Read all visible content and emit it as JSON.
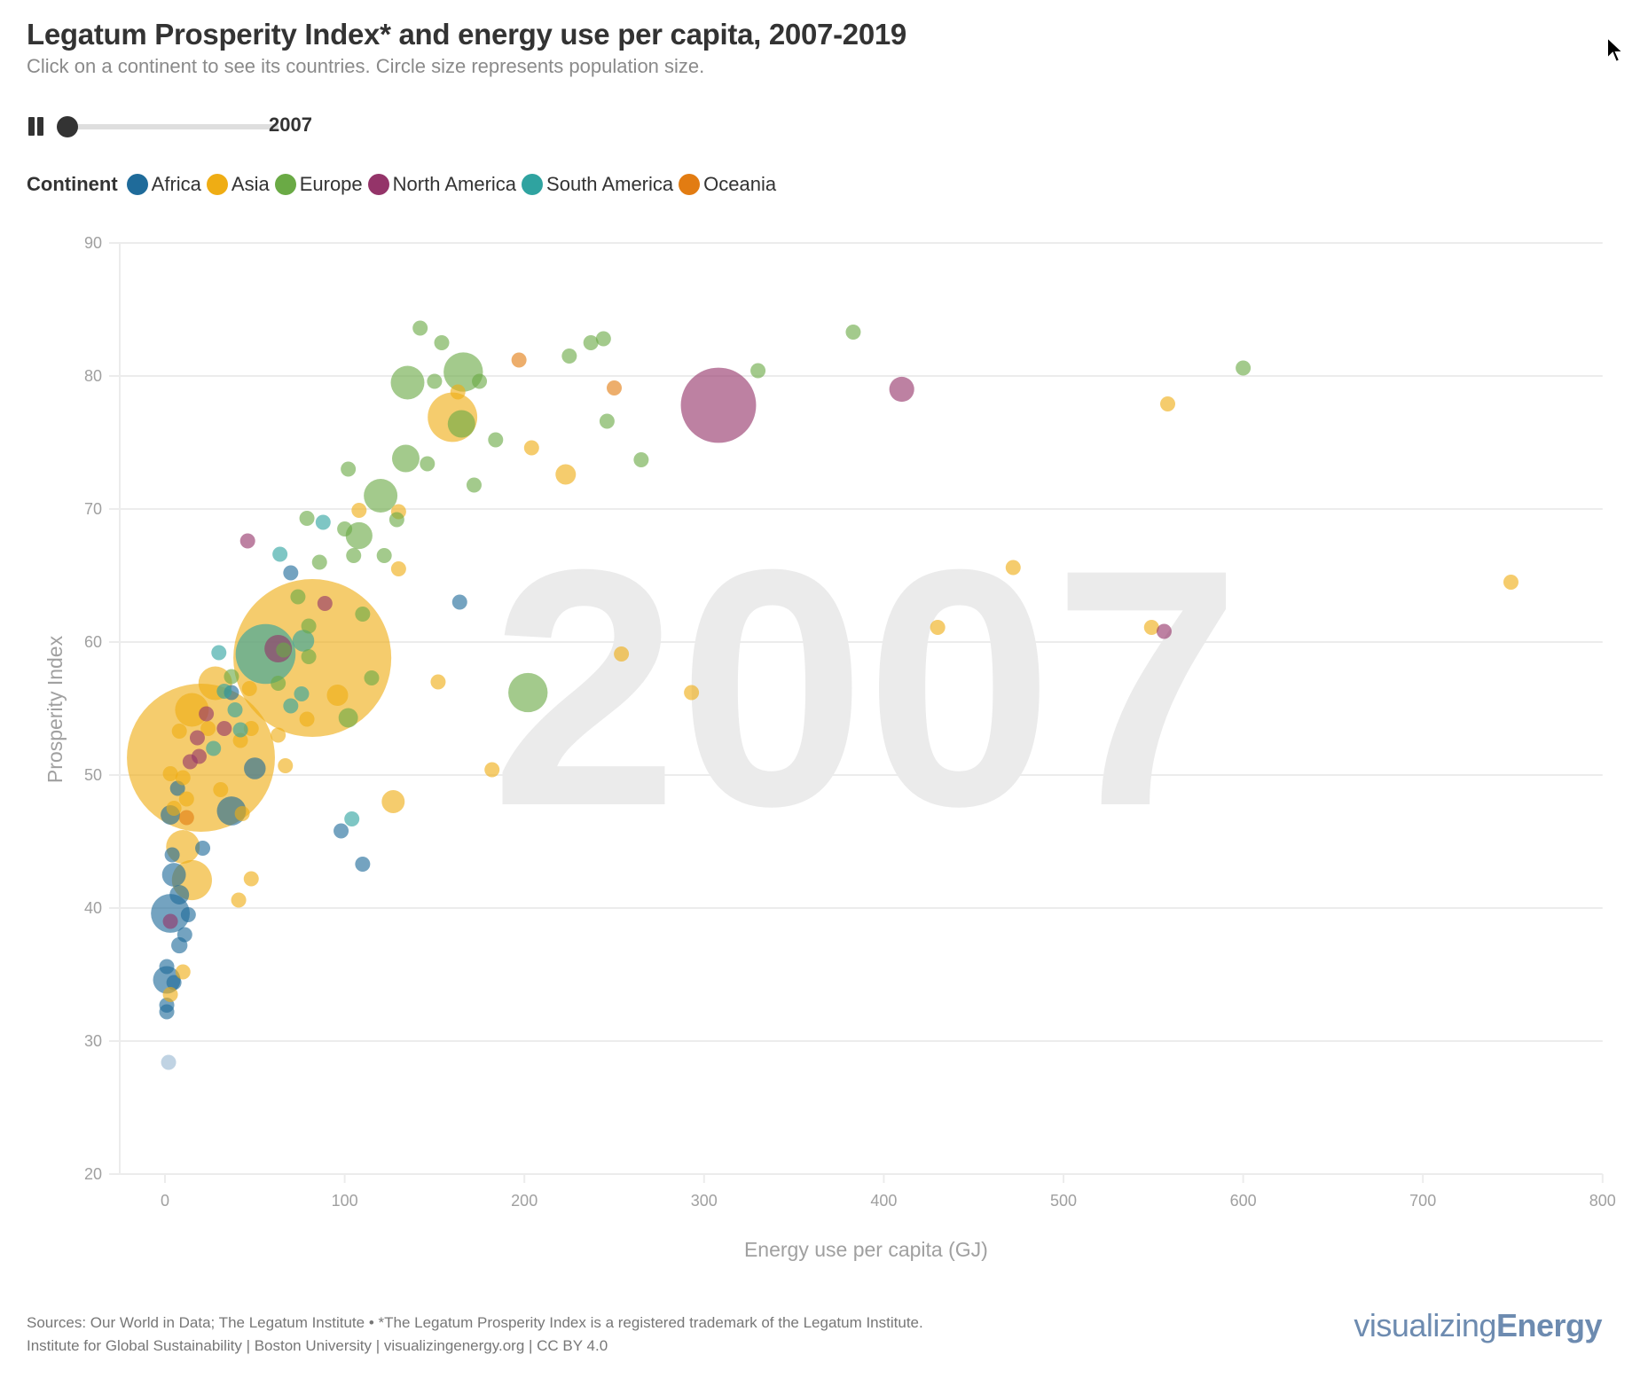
{
  "header": {
    "title": "Legatum Prosperity Index* and energy use per capita, 2007-2019",
    "subtitle": "Click on a continent to see its countries. Circle size represents population size."
  },
  "controls": {
    "play_state": "playing",
    "pause_icon": "pause-icon",
    "year_range": [
      2007,
      2019
    ],
    "current_year": "2007",
    "slider_progress": 0.0
  },
  "legend": {
    "title": "Continent",
    "items": [
      {
        "label": "Africa",
        "color": "#1f6b9a"
      },
      {
        "label": "Asia",
        "color": "#efad14"
      },
      {
        "label": "Europe",
        "color": "#6aaa45"
      },
      {
        "label": "North America",
        "color": "#943469"
      },
      {
        "label": "South America",
        "color": "#2fa3a0"
      },
      {
        "label": "Oceania",
        "color": "#e27c12"
      }
    ]
  },
  "chart_data": {
    "type": "scatter",
    "title": "Legatum Prosperity Index* and energy use per capita, 2007-2019",
    "xlabel": "Energy use per capita (GJ)",
    "ylabel": "Prosperity Index",
    "xlim": [
      -25,
      800
    ],
    "ylim": [
      20,
      90
    ],
    "xticks": [
      "0",
      "100",
      "200",
      "300",
      "400",
      "500",
      "600",
      "700",
      "800"
    ],
    "yticks": [
      "20",
      "30",
      "40",
      "50",
      "60",
      "70",
      "80",
      "90"
    ],
    "grid": "horizontal",
    "watermark_year": "2007",
    "size_encoding": "population (millions)",
    "series": [
      {
        "name": "Africa",
        "color": "#1f6b9a",
        "points": [
          [
            70,
            65.2,
            12
          ],
          [
            164,
            63,
            12
          ],
          [
            37,
            56.2,
            12
          ],
          [
            98,
            45.8,
            12
          ],
          [
            110,
            43.3,
            12
          ],
          [
            21,
            44.5,
            12
          ],
          [
            37,
            47.3,
            45
          ],
          [
            3,
            47,
            20
          ],
          [
            5,
            42.5,
            30
          ],
          [
            8,
            41,
            20
          ],
          [
            3,
            39.6,
            80
          ],
          [
            13,
            39.5,
            12
          ],
          [
            11,
            38,
            12
          ],
          [
            8,
            37.2,
            14
          ],
          [
            1,
            35.6,
            12
          ],
          [
            1,
            34.6,
            40
          ],
          [
            5,
            34.4,
            12
          ],
          [
            1,
            32.7,
            12
          ],
          [
            1,
            32.2,
            12
          ],
          [
            50,
            50.5,
            25
          ],
          [
            4,
            44,
            12
          ],
          [
            7,
            49,
            12
          ]
        ]
      },
      {
        "name": "Africa (no data)",
        "color": "#9ab8d2",
        "points": [
          [
            2,
            28.4,
            12
          ]
        ]
      },
      {
        "name": "Asia",
        "color": "#efad14",
        "points": [
          [
            82,
            58.8,
            1320
          ],
          [
            20,
            51.3,
            1160
          ],
          [
            28,
            56.9,
            60
          ],
          [
            15,
            54.9,
            60
          ],
          [
            10,
            44.6,
            60
          ],
          [
            15,
            42.1,
            85
          ],
          [
            160,
            76.9,
            130
          ],
          [
            127,
            48,
            28
          ],
          [
            223,
            72.6,
            22
          ],
          [
            163,
            78.8,
            12
          ],
          [
            204,
            74.6,
            12
          ],
          [
            130,
            69.8,
            12
          ],
          [
            108,
            69.9,
            12
          ],
          [
            130,
            65.5,
            12
          ],
          [
            152,
            57,
            12
          ],
          [
            182,
            50.4,
            12
          ],
          [
            254,
            59.1,
            12
          ],
          [
            293,
            56.2,
            12
          ],
          [
            430,
            61.1,
            12
          ],
          [
            472,
            65.6,
            12
          ],
          [
            549,
            61.1,
            12
          ],
          [
            558,
            77.9,
            12
          ],
          [
            749,
            64.5,
            12
          ],
          [
            63,
            53,
            12
          ],
          [
            67,
            50.7,
            12
          ],
          [
            79,
            54.2,
            12
          ],
          [
            47,
            56.5,
            12
          ],
          [
            42,
            52.6,
            12
          ],
          [
            48,
            53.5,
            12
          ],
          [
            31,
            48.9,
            12
          ],
          [
            48,
            42.2,
            12
          ],
          [
            41,
            40.6,
            12
          ],
          [
            10,
            35.2,
            12
          ],
          [
            3,
            33.5,
            12
          ],
          [
            43,
            47.1,
            12
          ],
          [
            96,
            56,
            24
          ],
          [
            24,
            53.5,
            12
          ],
          [
            10,
            49.8,
            12
          ],
          [
            12,
            48.2,
            12
          ],
          [
            8,
            53.3,
            12
          ],
          [
            3,
            50.1,
            12
          ],
          [
            5,
            47.5,
            12
          ]
        ]
      },
      {
        "name": "Europe",
        "color": "#6aaa45",
        "points": [
          [
            142,
            83.6,
            12
          ],
          [
            154,
            82.5,
            12
          ],
          [
            237,
            82.5,
            12
          ],
          [
            244,
            82.8,
            12
          ],
          [
            225,
            81.5,
            12
          ],
          [
            383,
            83.3,
            12
          ],
          [
            600,
            80.6,
            12
          ],
          [
            330,
            80.4,
            12
          ],
          [
            135,
            79.5,
            60
          ],
          [
            166,
            80.3,
            82
          ],
          [
            150,
            79.6,
            12
          ],
          [
            175,
            79.6,
            12
          ],
          [
            165,
            76.4,
            40
          ],
          [
            184,
            75.2,
            12
          ],
          [
            246,
            76.6,
            12
          ],
          [
            265,
            73.7,
            12
          ],
          [
            134,
            73.8,
            40
          ],
          [
            146,
            73.4,
            12
          ],
          [
            172,
            71.8,
            12
          ],
          [
            102,
            73,
            12
          ],
          [
            120,
            71,
            60
          ],
          [
            79,
            69.3,
            12
          ],
          [
            108,
            68,
            38
          ],
          [
            100,
            68.5,
            12
          ],
          [
            129,
            69.2,
            12
          ],
          [
            86,
            66,
            12
          ],
          [
            105,
            66.5,
            12
          ],
          [
            122,
            66.5,
            12
          ],
          [
            74,
            63.4,
            12
          ],
          [
            110,
            62.1,
            12
          ],
          [
            80,
            61.2,
            12
          ],
          [
            115,
            57.3,
            12
          ],
          [
            202,
            56.2,
            82
          ],
          [
            102,
            54.3,
            20
          ],
          [
            63,
            56.9,
            12
          ],
          [
            80,
            58.9,
            12
          ],
          [
            37,
            57.4,
            12
          ],
          [
            66,
            59.4,
            12
          ]
        ]
      },
      {
        "name": "North America",
        "color": "#943469",
        "points": [
          [
            308,
            77.8,
            300
          ],
          [
            410,
            79,
            33
          ],
          [
            556,
            60.8,
            12
          ],
          [
            46,
            67.6,
            12
          ],
          [
            89,
            62.9,
            12
          ],
          [
            63,
            59.5,
            40
          ],
          [
            23,
            54.6,
            12
          ],
          [
            33,
            53.5,
            12
          ],
          [
            18,
            52.8,
            12
          ],
          [
            19,
            51.4,
            12
          ],
          [
            14,
            51,
            12
          ],
          [
            3,
            39,
            12
          ]
        ]
      },
      {
        "name": "South America",
        "color": "#2fa3a0",
        "points": [
          [
            56,
            59.1,
            190
          ],
          [
            88,
            69,
            12
          ],
          [
            64,
            66.6,
            12
          ],
          [
            30,
            59.2,
            12
          ],
          [
            77,
            60.1,
            25
          ],
          [
            76,
            56.1,
            12
          ],
          [
            33,
            56.3,
            12
          ],
          [
            39,
            54.9,
            12
          ],
          [
            70,
            55.2,
            12
          ],
          [
            42,
            53.4,
            12
          ],
          [
            27,
            52,
            12
          ],
          [
            104,
            46.7,
            12
          ]
        ]
      },
      {
        "name": "Oceania",
        "color": "#e27c12",
        "points": [
          [
            197,
            81.2,
            12
          ],
          [
            250,
            79.1,
            12
          ],
          [
            12,
            46.8,
            12
          ]
        ]
      }
    ]
  },
  "footer": {
    "sources": "Sources: Our World in Data; The Legatum Institute • *The Legatum Prosperity Index is a registered trademark of the Legatum Institute.",
    "credits": "Institute for Global Sustainability | Boston University | visualizingenergy.org | CC BY 4.0",
    "logo_light": "visualizing",
    "logo_bold": "Energy"
  }
}
